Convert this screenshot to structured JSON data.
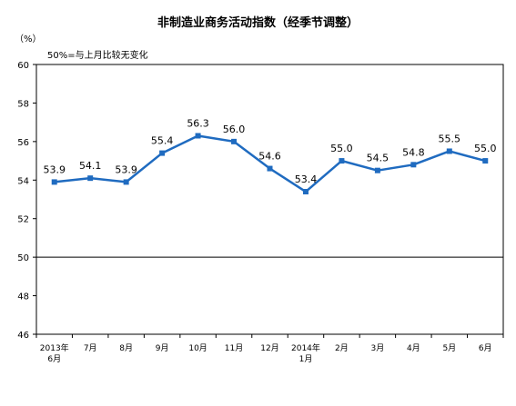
{
  "chart_data": {
    "type": "line",
    "title": "非制造业商务活动指数（经季节调整）",
    "unit_label": "（%）",
    "annotation": "50%=与上月比较无变化",
    "categories": [
      [
        "2013年",
        "6月"
      ],
      [
        "7月"
      ],
      [
        "8月"
      ],
      [
        "9月"
      ],
      [
        "10月"
      ],
      [
        "11月"
      ],
      [
        "12月"
      ],
      [
        "2014年",
        "1月"
      ],
      [
        "2月"
      ],
      [
        "3月"
      ],
      [
        "4月"
      ],
      [
        "5月"
      ],
      [
        "6月"
      ]
    ],
    "series": [
      {
        "values": [
          53.9,
          54.1,
          53.9,
          55.4,
          56.3,
          56.0,
          54.6,
          53.4,
          55.0,
          54.5,
          54.8,
          55.5,
          55.0
        ],
        "labels": [
          "53.9",
          "54.1",
          "53.9",
          "55.4",
          "56.3",
          "56.0",
          "54.6",
          "53.4",
          "55.0",
          "54.5",
          "54.8",
          "55.5",
          "55.0"
        ],
        "color": "#1f6bc0"
      }
    ],
    "ylim": [
      46,
      60
    ],
    "yticks": [
      60,
      58,
      56,
      54,
      52,
      50,
      48,
      46
    ],
    "reference_line": 50,
    "grid": false,
    "legend": "none"
  }
}
